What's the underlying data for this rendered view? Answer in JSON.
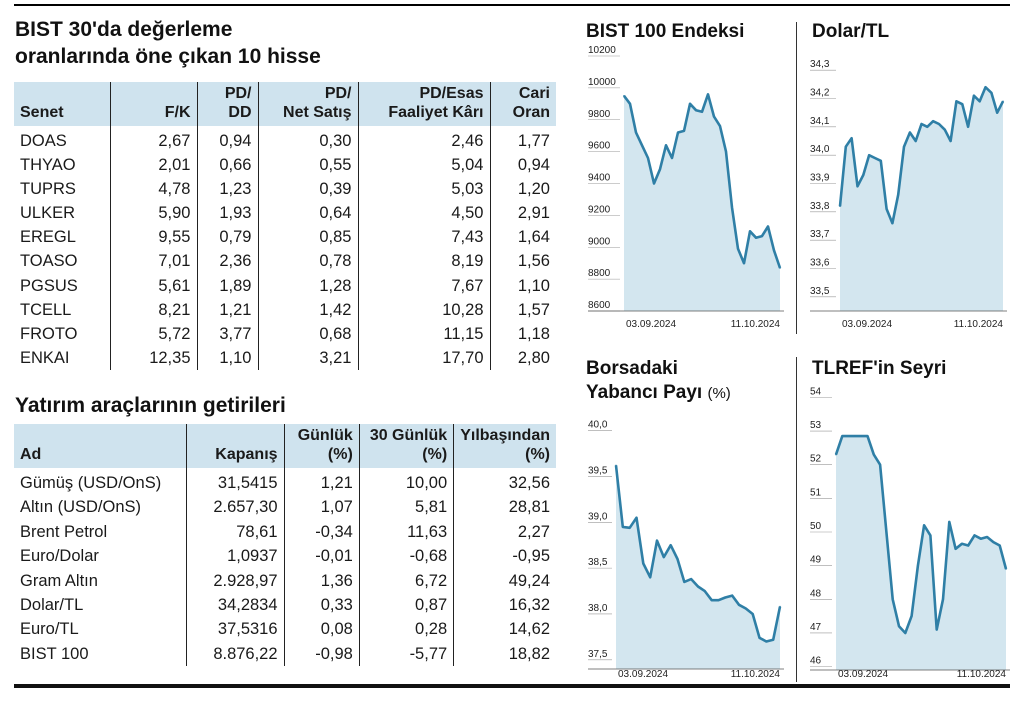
{
  "valuation": {
    "title_line1": "BIST 30'da değerleme",
    "title_line2": "oranlarında öne çıkan 10 hisse",
    "headers": [
      [
        "",
        "Senet"
      ],
      [
        "",
        "F/K"
      ],
      [
        "PD/",
        "DD"
      ],
      [
        "PD/",
        "Net Satış"
      ],
      [
        "PD/Esas",
        "Faaliyet Kârı"
      ],
      [
        "Cari",
        "Oran"
      ]
    ],
    "rows": [
      [
        "DOAS",
        "2,67",
        "0,94",
        "0,30",
        "2,46",
        "1,77"
      ],
      [
        "THYAO",
        "2,01",
        "0,66",
        "0,55",
        "5,04",
        "0,94"
      ],
      [
        "TUPRS",
        "4,78",
        "1,23",
        "0,39",
        "5,03",
        "1,20"
      ],
      [
        "ULKER",
        "5,90",
        "1,93",
        "0,64",
        "4,50",
        "2,91"
      ],
      [
        "EREGL",
        "9,55",
        "0,79",
        "0,85",
        "7,43",
        "1,64"
      ],
      [
        "TOASO",
        "7,01",
        "2,36",
        "0,78",
        "8,19",
        "1,56"
      ],
      [
        "PGSUS",
        "5,61",
        "1,89",
        "1,28",
        "7,67",
        "1,10"
      ],
      [
        "TCELL",
        "8,21",
        "1,21",
        "1,42",
        "10,28",
        "1,57"
      ],
      [
        "FROTO",
        "5,72",
        "3,77",
        "0,68",
        "11,15",
        "1,18"
      ],
      [
        "ENKAI",
        "12,35",
        "1,10",
        "3,21",
        "17,70",
        "2,80"
      ]
    ]
  },
  "returns": {
    "title": "Yatırım araçlarının getirileri",
    "headers": [
      [
        "",
        "Ad"
      ],
      [
        "",
        "Kapanış"
      ],
      [
        "Günlük",
        "(%)"
      ],
      [
        "30 Günlük",
        "(%)"
      ],
      [
        "Yılbaşından",
        "(%)"
      ]
    ],
    "rows": [
      [
        "Gümüş (USD/OnS)",
        "31,5415",
        "1,21",
        "10,00",
        "32,56"
      ],
      [
        "Altın (USD/OnS)",
        "2.657,30",
        "1,07",
        "5,81",
        "28,81"
      ],
      [
        "Brent Petrol",
        "78,61",
        "-0,34",
        "11,63",
        "2,27"
      ],
      [
        "Euro/Dolar",
        "1,0937",
        "-0,01",
        "-0,68",
        "-0,95"
      ],
      [
        "Gram Altın",
        "2.928,97",
        "1,36",
        "6,72",
        "49,24"
      ],
      [
        "Dolar/TL",
        "34,2834",
        "0,33",
        "0,87",
        "16,32"
      ],
      [
        "Euro/TL",
        "37,5316",
        "0,08",
        "0,28",
        "14,62"
      ],
      [
        "BIST 100",
        "8.876,22",
        "-0,98",
        "-5,77",
        "18,82"
      ]
    ]
  },
  "colors": {
    "line": "#2f7fa6",
    "area": "#d3e6ef",
    "header_bg": "#cfe3ee"
  },
  "chart_data": [
    {
      "type": "area",
      "title": "BIST 100 Endeksi",
      "title_unit": "",
      "x_labels": [
        "03.09.2024",
        "11.10.2024"
      ],
      "yticks": [
        8600,
        8800,
        9000,
        9200,
        9400,
        9600,
        9800,
        10000,
        10200
      ],
      "ytick_labels": [
        "8600",
        "8800",
        "9000",
        "9200",
        "9400",
        "9600",
        "9800",
        "10000",
        "10200"
      ],
      "ylim": [
        8600,
        10200
      ],
      "values": [
        9950,
        9900,
        9720,
        9640,
        9560,
        9400,
        9490,
        9640,
        9560,
        9720,
        9730,
        9900,
        9860,
        9850,
        9960,
        9820,
        9760,
        9600,
        9250,
        8990,
        8900,
        9100,
        9060,
        9070,
        9130,
        8980,
        8870
      ]
    },
    {
      "type": "area",
      "title": "Dolar/TL",
      "title_unit": "",
      "x_labels": [
        "03.09.2024",
        "11.10.2024"
      ],
      "yticks": [
        33.5,
        33.6,
        33.7,
        33.8,
        33.9,
        34.0,
        34.1,
        34.2,
        34.3
      ],
      "ytick_labels": [
        "33,5",
        "33,6",
        "33,7",
        "33,8",
        "33,9",
        "34,0",
        "34,1",
        "34,2",
        "34,3"
      ],
      "ylim": [
        33.45,
        34.35
      ],
      "values": [
        33.82,
        34.03,
        34.06,
        33.89,
        33.93,
        34.0,
        33.99,
        33.98,
        33.81,
        33.76,
        33.86,
        34.03,
        34.08,
        34.05,
        34.11,
        34.1,
        34.12,
        34.11,
        34.09,
        34.05,
        34.19,
        34.18,
        34.1,
        34.21,
        34.19,
        34.24,
        34.22,
        34.15,
        34.19
      ]
    },
    {
      "type": "area",
      "title": "Borsadaki Yabancı Payı",
      "title_line1": "Borsadaki",
      "title_line2": "Yabancı Payı",
      "title_unit": "(%)",
      "x_labels": [
        "03.09.2024",
        "11.10.2024"
      ],
      "yticks": [
        37.5,
        38.0,
        38.5,
        39.0,
        39.5,
        40.0
      ],
      "ytick_labels": [
        "37,5",
        "38,0",
        "38,5",
        "39,0",
        "39,5",
        "40,0"
      ],
      "ylim": [
        37.4,
        40.05
      ],
      "values": [
        39.62,
        38.95,
        38.94,
        39.05,
        38.55,
        38.4,
        38.8,
        38.62,
        38.75,
        38.6,
        38.35,
        38.38,
        38.3,
        38.25,
        38.15,
        38.15,
        38.18,
        38.2,
        38.1,
        38.06,
        38.0,
        37.74,
        37.7,
        37.72,
        38.08
      ]
    },
    {
      "type": "area",
      "title": "TLREF'in Seyri",
      "title_unit": "",
      "x_labels": [
        "03.09.2024",
        "11.10.2024"
      ],
      "yticks": [
        46,
        47,
        48,
        49,
        50,
        51,
        52,
        53,
        54
      ],
      "ytick_labels": [
        "46",
        "47",
        "48",
        "49",
        "50",
        "51",
        "52",
        "53",
        "54"
      ],
      "ylim": [
        45.9,
        54.1
      ],
      "values": [
        52.3,
        52.85,
        52.85,
        52.85,
        52.85,
        52.85,
        52.3,
        52.0,
        50.0,
        48.0,
        47.2,
        47.0,
        47.5,
        49.0,
        50.2,
        49.9,
        47.1,
        48.0,
        50.3,
        49.5,
        49.65,
        49.6,
        49.9,
        49.8,
        49.85,
        49.7,
        49.6,
        48.9
      ]
    }
  ]
}
